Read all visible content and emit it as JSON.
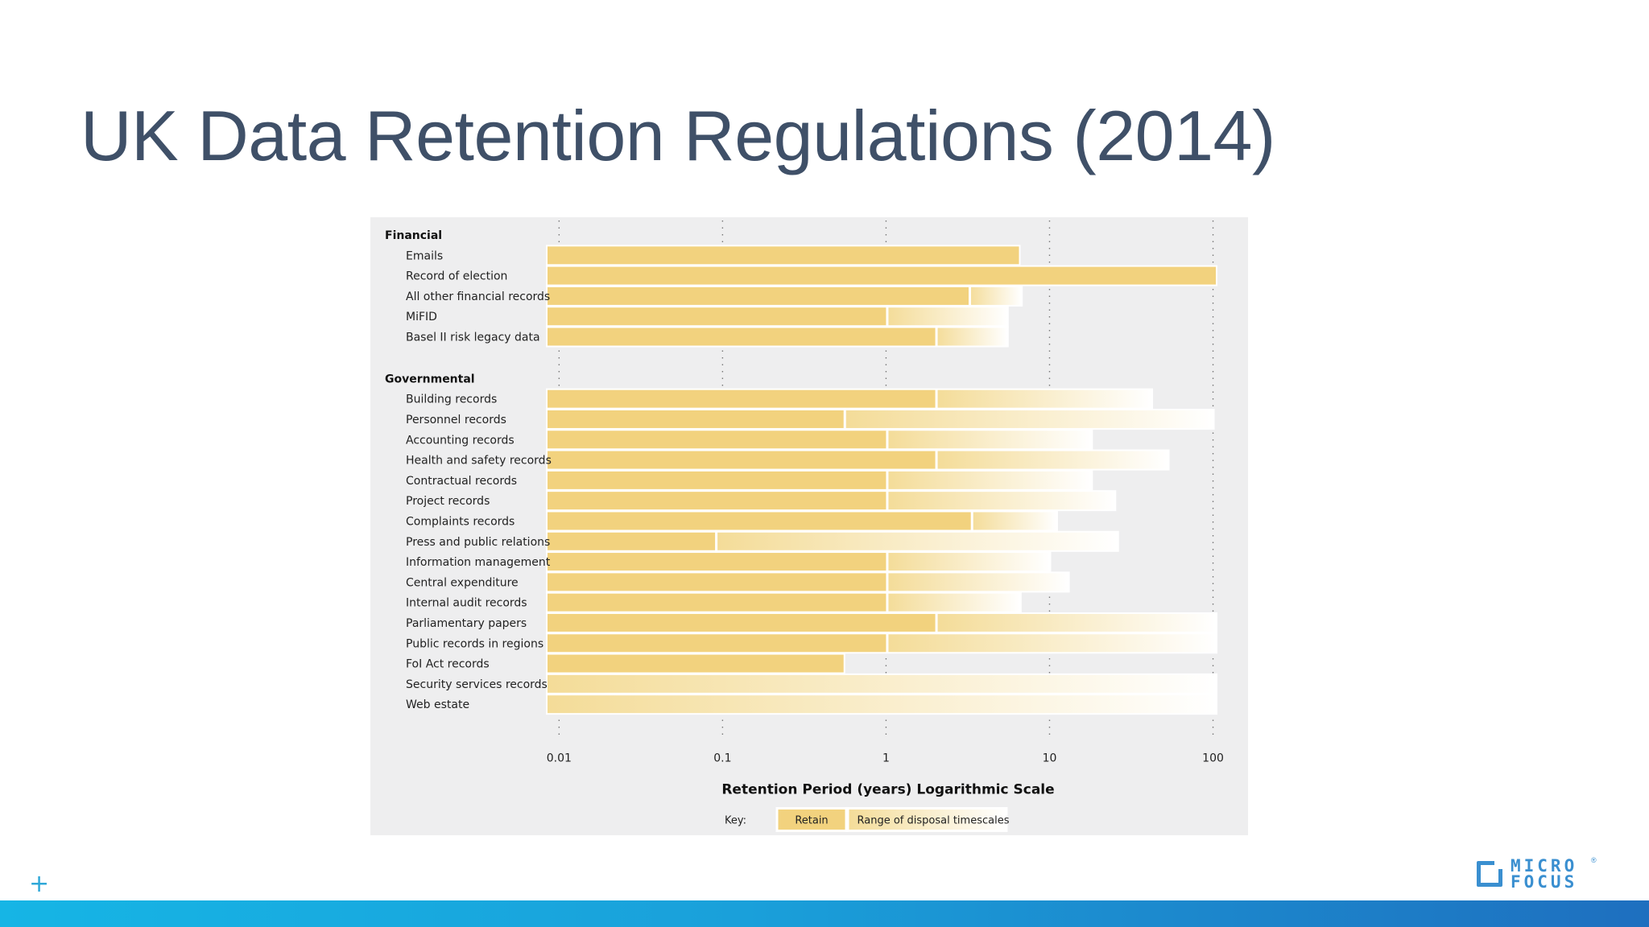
{
  "slide": {
    "title": "UK Data Retention Regulations (2014)"
  },
  "colors": {
    "title": "#3f5068",
    "retain": "#f2d27e",
    "range_start": "#f4dc98",
    "range_end": "#ffffff",
    "panel": "#eeeeef",
    "footer_start": "#16b5e5",
    "footer_end": "#1e6fbf",
    "logo": "#3a8fd0"
  },
  "logo": {
    "line1": "MICRO",
    "line2": "FOCUS",
    "mark": "®"
  },
  "chart_data": {
    "type": "bar",
    "orientation": "horizontal",
    "xscale": "log",
    "xlim": [
      0.0085,
      104
    ],
    "grid": true,
    "xlabel": "Retention Period (years) Logarithmic Scale",
    "ticks": [
      "0.01",
      "0.1",
      "1",
      "10",
      "100"
    ],
    "tick_values": [
      0.01,
      0.1,
      1,
      10,
      100
    ],
    "key": {
      "label": "Key:",
      "retain": "Retain",
      "range": "Range of disposal timescales"
    },
    "groups": [
      {
        "name": "Financial",
        "rows": [
          {
            "label": "Emails",
            "retain": 6.5,
            "range_max": 6.5
          },
          {
            "label": "Record of election",
            "retain": 104,
            "range_max": 104
          },
          {
            "label": "All other financial records",
            "retain": 3.2,
            "range_max": 6.7
          },
          {
            "label": "MiFID",
            "retain": 1,
            "range_max": 5.5
          },
          {
            "label": "Basel II risk legacy data",
            "retain": 2,
            "range_max": 5.5
          }
        ]
      },
      {
        "name": "Governmental",
        "rows": [
          {
            "label": "Building records",
            "retain": 2,
            "range_max": 42
          },
          {
            "label": "Personnel records",
            "retain": 0.55,
            "range_max": 100
          },
          {
            "label": "Accounting records",
            "retain": 1,
            "range_max": 18
          },
          {
            "label": "Health and safety records",
            "retain": 2,
            "range_max": 53
          },
          {
            "label": "Contractual records",
            "retain": 1,
            "range_max": 18
          },
          {
            "label": "Project records",
            "retain": 1,
            "range_max": 25
          },
          {
            "label": "Complaints records",
            "retain": 3.3,
            "range_max": 11
          },
          {
            "label": "Press and public relations",
            "retain": 0.09,
            "range_max": 26
          },
          {
            "label": "Information management",
            "retain": 1,
            "range_max": 10
          },
          {
            "label": "Central expenditure",
            "retain": 1,
            "range_max": 13
          },
          {
            "label": "Internal audit records",
            "retain": 1,
            "range_max": 6.6
          },
          {
            "label": "Parliamentary papers",
            "retain": 2,
            "range_max": 104
          },
          {
            "label": "Public records in regions",
            "retain": 1,
            "range_max": 104
          },
          {
            "label": "FoI Act records",
            "retain": 0.55,
            "range_max": 0.55
          },
          {
            "label": "Security services records",
            "retain": 0.0085,
            "range_max": 104
          },
          {
            "label": "Web estate",
            "retain": 0.0085,
            "range_max": 104
          }
        ]
      }
    ]
  }
}
